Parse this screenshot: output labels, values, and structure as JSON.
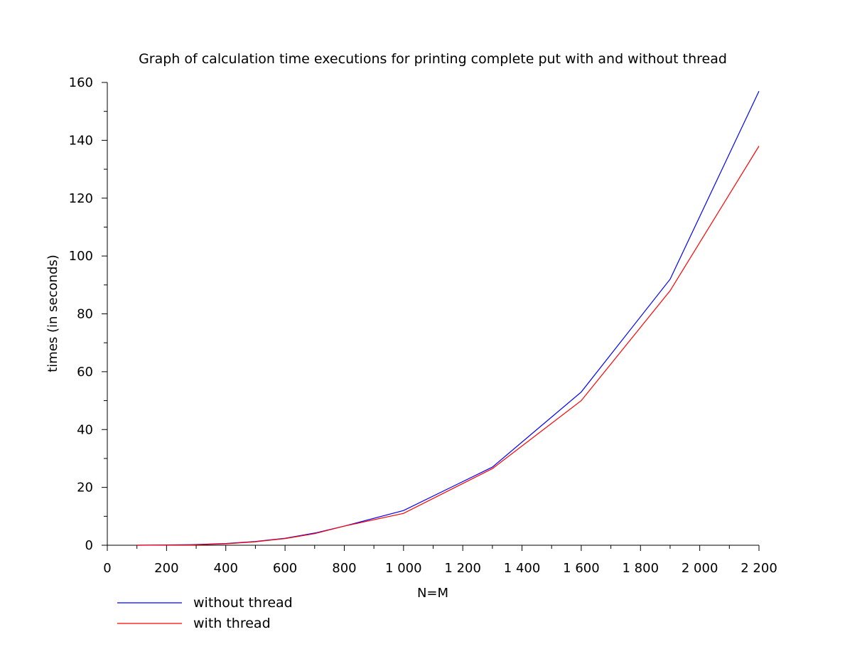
{
  "chart_data": {
    "type": "line",
    "title": "Graph of calculation time executions for printing complete put with and without thread",
    "xlabel": "N=M",
    "ylabel": "times (in seconds)",
    "xlim": [
      0,
      2200
    ],
    "ylim": [
      0,
      160
    ],
    "x_ticks": [
      0,
      200,
      400,
      600,
      800,
      1000,
      1200,
      1400,
      1600,
      1800,
      2000,
      2200
    ],
    "x_tick_labels": [
      "0",
      "200",
      "400",
      "600",
      "800",
      "1 000",
      "1 200",
      "1 400",
      "1 600",
      "1 800",
      "2 000",
      "2 200"
    ],
    "y_ticks": [
      0,
      20,
      40,
      60,
      80,
      100,
      120,
      140,
      160
    ],
    "y_tick_labels": [
      "0",
      "20",
      "40",
      "60",
      "80",
      "100",
      "120",
      "140",
      "160"
    ],
    "grid": false,
    "legend_position": "bottom-left",
    "series": [
      {
        "name": "without thread",
        "color": "#0000ff",
        "x": [
          100,
          280,
          400,
          500,
          600,
          700,
          800,
          1000,
          1300,
          1600,
          1900,
          2200
        ],
        "y": [
          0,
          0.2,
          0.6,
          1.3,
          2.4,
          4.2,
          6.6,
          12,
          27,
          53,
          92,
          157
        ]
      },
      {
        "name": "with thread",
        "color": "#ff0000",
        "x": [
          100,
          280,
          400,
          500,
          600,
          700,
          800,
          1000,
          1300,
          1600,
          1900,
          2200
        ],
        "y": [
          0,
          0.1,
          0.5,
          1.2,
          2.3,
          4,
          6.6,
          11,
          26.5,
          50,
          88,
          138
        ]
      }
    ]
  }
}
